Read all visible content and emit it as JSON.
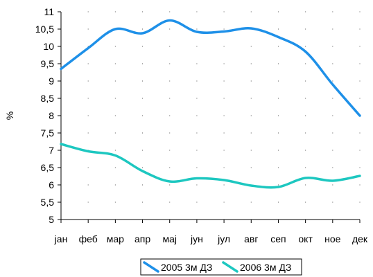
{
  "chart_data": {
    "type": "line",
    "title": "",
    "xlabel": "",
    "ylabel": "%",
    "ylim": [
      5,
      11
    ],
    "yticks": [
      "5",
      "5,5",
      "6",
      "6,5",
      "7",
      "7,5",
      "8",
      "8,5",
      "9",
      "9,5",
      "10",
      "10,5",
      "11"
    ],
    "ytick_values": [
      5,
      5.5,
      6,
      6.5,
      7,
      7.5,
      8,
      8.5,
      9,
      9.5,
      10,
      10.5,
      11
    ],
    "categories": [
      "јан",
      "феб",
      "мар",
      "апр",
      "мај",
      "јун",
      "јул",
      "авг",
      "сеп",
      "окт",
      "ное",
      "дек"
    ],
    "grid": "dotted",
    "legend_position": "bottom-center",
    "series": [
      {
        "name": "2005 3м ДЗ",
        "color": "#1E90E8",
        "values": [
          9.35,
          9.95,
          10.5,
          10.38,
          10.75,
          10.42,
          10.43,
          10.52,
          10.27,
          9.85,
          8.9,
          8.0
        ]
      },
      {
        "name": "2006 3м ДЗ",
        "color": "#1DC7C0",
        "values": [
          7.18,
          6.97,
          6.85,
          6.4,
          6.1,
          6.19,
          6.14,
          5.98,
          5.94,
          6.2,
          6.12,
          6.26
        ]
      }
    ]
  }
}
